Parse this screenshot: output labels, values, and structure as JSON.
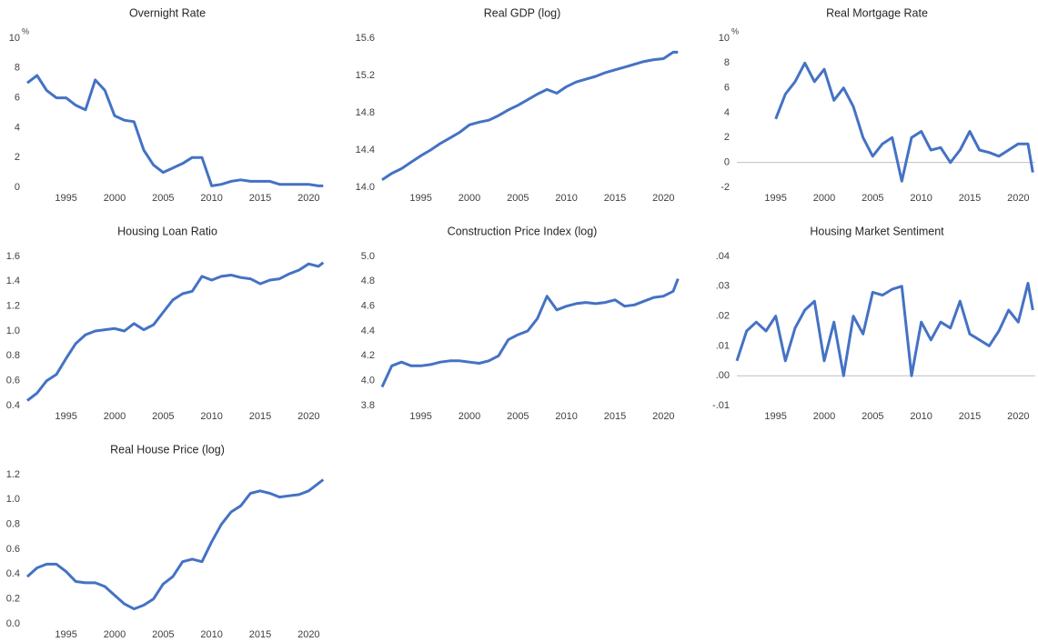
{
  "chart_data": [
    {
      "type": "line",
      "title": "Overnight Rate",
      "unit": "%",
      "x": [
        1991,
        1992,
        1993,
        1994,
        1995,
        1996,
        1997,
        1998,
        1999,
        2000,
        2001,
        2002,
        2003,
        2004,
        2005,
        2006,
        2007,
        2008,
        2009,
        2010,
        2011,
        2012,
        2013,
        2014,
        2015,
        2016,
        2017,
        2018,
        2019,
        2020,
        2021,
        2021.5
      ],
      "series": [
        {
          "name": "Overnight Rate",
          "color": "#4472c4",
          "values": [
            7.0,
            7.5,
            6.5,
            6.0,
            6.0,
            5.5,
            5.2,
            7.2,
            6.5,
            4.8,
            4.5,
            4.4,
            2.5,
            1.5,
            1.0,
            1.3,
            1.6,
            2.0,
            2.0,
            0.1,
            0.2,
            0.4,
            0.5,
            0.4,
            0.4,
            0.4,
            0.2,
            0.2,
            0.2,
            0.2,
            0.1,
            0.1
          ]
        }
      ],
      "xlim": [
        1991,
        2021.75
      ],
      "xticks": [
        1995,
        2000,
        2005,
        2010,
        2015,
        2020
      ],
      "ylim": [
        0,
        10
      ],
      "yticks": [
        0,
        2,
        4,
        6,
        8,
        10
      ],
      "zero_line": false
    },
    {
      "type": "line",
      "title": "Real GDP (log)",
      "x": [
        1991,
        1992,
        1993,
        1994,
        1995,
        1996,
        1997,
        1998,
        1999,
        2000,
        2001,
        2002,
        2003,
        2004,
        2005,
        2006,
        2007,
        2008,
        2009,
        2010,
        2011,
        2012,
        2013,
        2014,
        2015,
        2016,
        2017,
        2018,
        2019,
        2020,
        2021,
        2021.5
      ],
      "series": [
        {
          "name": "Real GDP (log)",
          "color": "#4472c4",
          "values": [
            14.08,
            14.15,
            14.2,
            14.27,
            14.34,
            14.4,
            14.47,
            14.53,
            14.59,
            14.67,
            14.7,
            14.72,
            14.77,
            14.83,
            14.88,
            14.94,
            15.0,
            15.05,
            15.01,
            15.08,
            15.13,
            15.16,
            15.19,
            15.23,
            15.26,
            15.29,
            15.32,
            15.35,
            15.37,
            15.38,
            15.45,
            15.45
          ]
        }
      ],
      "xlim": [
        1991,
        2021.75
      ],
      "xticks": [
        1995,
        2000,
        2005,
        2010,
        2015,
        2020
      ],
      "ylim": [
        14.0,
        15.6
      ],
      "yticks": [
        {
          "value": 14.0,
          "label": "14.0"
        },
        14.4,
        14.8,
        15.2,
        15.6
      ],
      "zero_line": false
    },
    {
      "type": "line",
      "title": "Real Mortgage Rate",
      "unit": "%",
      "x": [
        1991,
        1992,
        1993,
        1994,
        1995,
        1996,
        1997,
        1998,
        1999,
        2000,
        2001,
        2002,
        2003,
        2004,
        2005,
        2006,
        2007,
        2008,
        2009,
        2010,
        2011,
        2012,
        2013,
        2014,
        2015,
        2016,
        2017,
        2018,
        2019,
        2020,
        2021,
        2021.5
      ],
      "series": [
        {
          "name": "Real Mortgage Rate",
          "color": "#4472c4",
          "values": [
            null,
            null,
            null,
            null,
            3.5,
            5.5,
            6.5,
            8.0,
            6.5,
            7.5,
            5.0,
            6.0,
            4.5,
            2.0,
            0.5,
            1.5,
            2.0,
            -1.5,
            2.0,
            2.5,
            1.0,
            1.2,
            0.0,
            1.0,
            2.5,
            1.0,
            0.8,
            0.5,
            1.0,
            1.5,
            1.5,
            -0.8
          ]
        }
      ],
      "xlim": [
        1991,
        2021.75
      ],
      "xticks": [
        1995,
        2000,
        2005,
        2010,
        2015,
        2020
      ],
      "ylim": [
        -2,
        10
      ],
      "yticks": [
        -2,
        0,
        2,
        4,
        6,
        8,
        10
      ],
      "zero_line": true
    },
    {
      "type": "line",
      "title": "Housing Loan Ratio",
      "x": [
        1991,
        1992,
        1993,
        1994,
        1995,
        1996,
        1997,
        1998,
        1999,
        2000,
        2001,
        2002,
        2003,
        2004,
        2005,
        2006,
        2007,
        2008,
        2009,
        2010,
        2011,
        2012,
        2013,
        2014,
        2015,
        2016,
        2017,
        2018,
        2019,
        2020,
        2021,
        2021.5
      ],
      "series": [
        {
          "name": "Housing Loan Ratio",
          "color": "#4472c4",
          "values": [
            0.44,
            0.5,
            0.6,
            0.65,
            0.78,
            0.9,
            0.97,
            1.0,
            1.01,
            1.02,
            1.0,
            1.06,
            1.01,
            1.05,
            1.15,
            1.25,
            1.3,
            1.32,
            1.44,
            1.41,
            1.44,
            1.45,
            1.43,
            1.42,
            1.38,
            1.41,
            1.42,
            1.46,
            1.49,
            1.54,
            1.52,
            1.55
          ]
        }
      ],
      "xlim": [
        1991,
        2021.75
      ],
      "xticks": [
        1995,
        2000,
        2005,
        2010,
        2015,
        2020
      ],
      "ylim": [
        0.4,
        1.6
      ],
      "yticks": [
        0.4,
        0.6,
        0.8,
        {
          "value": 1.0,
          "label": "1.0"
        },
        1.2,
        1.4,
        1.6
      ],
      "zero_line": false
    },
    {
      "type": "line",
      "title": "Construction Price Index (log)",
      "x": [
        1991,
        1992,
        1993,
        1994,
        1995,
        1996,
        1997,
        1998,
        1999,
        2000,
        2001,
        2002,
        2003,
        2004,
        2005,
        2006,
        2007,
        2008,
        2009,
        2010,
        2011,
        2012,
        2013,
        2014,
        2015,
        2016,
        2017,
        2018,
        2019,
        2020,
        2021,
        2021.5
      ],
      "series": [
        {
          "name": "Construction Price Index (log)",
          "color": "#4472c4",
          "values": [
            3.95,
            4.12,
            4.15,
            4.12,
            4.12,
            4.13,
            4.15,
            4.16,
            4.16,
            4.15,
            4.14,
            4.16,
            4.2,
            4.33,
            4.37,
            4.4,
            4.5,
            4.68,
            4.57,
            4.6,
            4.62,
            4.63,
            4.62,
            4.63,
            4.65,
            4.6,
            4.61,
            4.64,
            4.67,
            4.68,
            4.72,
            4.82
          ]
        }
      ],
      "xlim": [
        1991,
        2021.75
      ],
      "xticks": [
        1995,
        2000,
        2005,
        2010,
        2015,
        2020
      ],
      "ylim": [
        3.8,
        5.0
      ],
      "yticks": [
        3.8,
        {
          "value": 4.0,
          "label": "4.0"
        },
        4.2,
        4.4,
        4.6,
        4.8,
        {
          "value": 5.0,
          "label": "5.0"
        }
      ],
      "zero_line": false
    },
    {
      "type": "line",
      "title": "Housing Market Sentiment",
      "x": [
        1991,
        1992,
        1993,
        1994,
        1995,
        1996,
        1997,
        1998,
        1999,
        2000,
        2001,
        2002,
        2003,
        2004,
        2005,
        2006,
        2007,
        2008,
        2009,
        2010,
        2011,
        2012,
        2013,
        2014,
        2015,
        2016,
        2017,
        2018,
        2019,
        2020,
        2021,
        2021.5
      ],
      "series": [
        {
          "name": "Housing Market Sentiment",
          "color": "#4472c4",
          "values": [
            0.005,
            0.015,
            0.018,
            0.015,
            0.02,
            0.005,
            0.016,
            0.022,
            0.025,
            0.005,
            0.018,
            0.0,
            0.02,
            0.014,
            0.028,
            0.027,
            0.029,
            0.03,
            0.0,
            0.018,
            0.012,
            0.018,
            0.016,
            0.025,
            0.014,
            0.012,
            0.01,
            0.015,
            0.022,
            0.018,
            0.031,
            0.022
          ]
        }
      ],
      "xlim": [
        1991,
        2021.75
      ],
      "xticks": [
        1995,
        2000,
        2005,
        2010,
        2015,
        2020
      ],
      "ylim": [
        -0.01,
        0.04
      ],
      "yticks": [
        {
          "value": -0.01,
          "label": "-.01"
        },
        {
          "value": 0,
          "label": ".00"
        },
        {
          "value": 0.01,
          "label": ".01"
        },
        {
          "value": 0.02,
          "label": ".02"
        },
        {
          "value": 0.03,
          "label": ".03"
        },
        {
          "value": 0.04,
          "label": ".04"
        }
      ],
      "zero_line": true
    },
    {
      "type": "line",
      "title": "Real House Price (log)",
      "x": [
        1991,
        1992,
        1993,
        1994,
        1995,
        1996,
        1997,
        1998,
        1999,
        2000,
        2001,
        2002,
        2003,
        2004,
        2005,
        2006,
        2007,
        2008,
        2009,
        2010,
        2011,
        2012,
        2013,
        2014,
        2015,
        2016,
        2017,
        2018,
        2019,
        2020,
        2021,
        2021.5
      ],
      "series": [
        {
          "name": "Real House Price (log)",
          "color": "#4472c4",
          "values": [
            0.38,
            0.45,
            0.48,
            0.48,
            0.42,
            0.34,
            0.33,
            0.33,
            0.3,
            0.23,
            0.16,
            0.12,
            0.15,
            0.2,
            0.32,
            0.38,
            0.5,
            0.52,
            0.5,
            0.66,
            0.8,
            0.9,
            0.95,
            1.05,
            1.07,
            1.05,
            1.02,
            1.03,
            1.04,
            1.07,
            1.13,
            1.16
          ]
        }
      ],
      "xlim": [
        1991,
        2021.75
      ],
      "xticks": [
        1995,
        2000,
        2005,
        2010,
        2015,
        2020
      ],
      "ylim": [
        0,
        1.2
      ],
      "yticks": [
        {
          "value": 0,
          "label": "0.0"
        },
        0.2,
        0.4,
        0.6,
        0.8,
        {
          "value": 1.0,
          "label": "1.0"
        },
        1.2
      ],
      "zero_line": false
    }
  ]
}
